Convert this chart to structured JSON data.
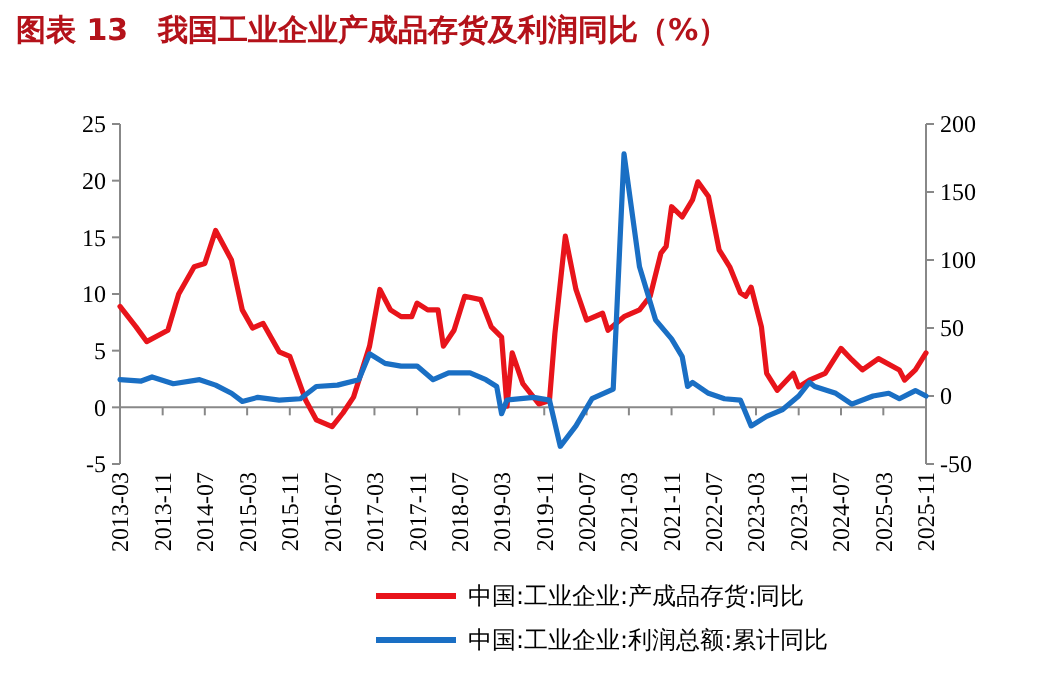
{
  "chart_data": {
    "type": "line",
    "title": "图表 13　我国工业企业产成品存货及利润同比（%）",
    "xlim": [
      "2013-03",
      "2025-11"
    ],
    "xticks": [
      "2013-03",
      "2013-11",
      "2014-07",
      "2015-03",
      "2015-11",
      "2016-07",
      "2017-03",
      "2017-11",
      "2018-07",
      "2019-03",
      "2019-11",
      "2020-07",
      "2021-03",
      "2021-11",
      "2022-07",
      "2023-03",
      "2023-11",
      "2024-07",
      "2025-03",
      "2025-11"
    ],
    "ylim": [
      -5,
      25
    ],
    "yticks": [
      -5,
      0,
      5,
      10,
      15,
      20,
      25
    ],
    "y2lim": [
      -50,
      200
    ],
    "y2ticks": [
      -50,
      0,
      50,
      100,
      150,
      200
    ],
    "legend": "bottom",
    "series": [
      {
        "name": "中国:工业企业:产成品存货:同比",
        "color": "#e8141b",
        "x": [
          "2013-03",
          "2013-06",
          "2013-08",
          "2013-12",
          "2014-02",
          "2014-05",
          "2014-07",
          "2014-09",
          "2014-12",
          "2015-02",
          "2015-04",
          "2015-06",
          "2015-09",
          "2015-11",
          "2016-02",
          "2016-04",
          "2016-07",
          "2016-09",
          "2016-11",
          "2017-02",
          "2017-04",
          "2017-06",
          "2017-08",
          "2017-10",
          "2017-11",
          "2018-01",
          "2018-03",
          "2018-04",
          "2018-06",
          "2018-08",
          "2018-11",
          "2019-01",
          "2019-03",
          "2019-04",
          "2019-05",
          "2019-07",
          "2019-10",
          "2019-12",
          "2020-01",
          "2020-03",
          "2020-05",
          "2020-07",
          "2020-10",
          "2020-11",
          "2021-02",
          "2021-05",
          "2021-07",
          "2021-09",
          "2021-10",
          "2021-11",
          "2022-01",
          "2022-03",
          "2022-04",
          "2022-06",
          "2022-08",
          "2022-10",
          "2022-12",
          "2023-01",
          "2023-02",
          "2023-04",
          "2023-05",
          "2023-07",
          "2023-10",
          "2023-11",
          "2024-01",
          "2024-04",
          "2024-07",
          "2024-09",
          "2024-11",
          "2025-02",
          "2025-06",
          "2025-07",
          "2025-09",
          "2025-11"
        ],
        "values": [
          8.9,
          7.1,
          5.8,
          6.8,
          10,
          12.4,
          12.7,
          15.6,
          13,
          8.6,
          7,
          7.4,
          4.9,
          4.5,
          0.6,
          -1.1,
          -1.7,
          -0.5,
          0.9,
          5.4,
          10.4,
          8.6,
          8,
          8,
          9.2,
          8.6,
          8.6,
          5.4,
          6.8,
          9.8,
          9.5,
          7.1,
          6.2,
          0.1,
          4.8,
          2.1,
          0.3,
          0.6,
          6.5,
          15.1,
          10.4,
          7.7,
          8.3,
          6.8,
          8,
          8.6,
          9.8,
          13.6,
          14.2,
          17.7,
          16.8,
          18.3,
          19.9,
          18.6,
          13.9,
          12.4,
          10.1,
          9.8,
          10.6,
          7.1,
          3,
          1.5,
          3,
          1.8,
          2.4,
          3,
          5.2,
          4.2,
          3.3,
          4.3,
          3.3,
          2.4,
          3.3,
          4.8
        ]
      },
      {
        "name": "中国:工业企业:利润总额:累计同比",
        "color": "#1a6fc4",
        "axis": "y2",
        "x": [
          "2013-03",
          "2013-07",
          "2013-09",
          "2014-01",
          "2014-06",
          "2014-09",
          "2014-12",
          "2015-02",
          "2015-05",
          "2015-09",
          "2016-01",
          "2016-04",
          "2016-08",
          "2016-12",
          "2017-02",
          "2017-05",
          "2017-08",
          "2017-11",
          "2018-02",
          "2018-05",
          "2018-09",
          "2018-12",
          "2019-02",
          "2019-03",
          "2019-04",
          "2019-09",
          "2019-12",
          "2020-02",
          "2020-05",
          "2020-08",
          "2020-12",
          "2021-02",
          "2021-05",
          "2021-08",
          "2021-11",
          "2022-01",
          "2022-02",
          "2022-03",
          "2022-06",
          "2022-09",
          "2022-12",
          "2023-02",
          "2023-05",
          "2023-08",
          "2023-11",
          "2024-01",
          "2024-02",
          "2024-06",
          "2024-09",
          "2025-01",
          "2025-04",
          "2025-06",
          "2025-09",
          "2025-11"
        ],
        "values": [
          12,
          11,
          14,
          9,
          12,
          8,
          2,
          -4,
          -1,
          -3,
          -2,
          7,
          8,
          12,
          31,
          24,
          22,
          22,
          12,
          17,
          17,
          12,
          7,
          -13,
          -3,
          -1,
          -3,
          -37,
          -22,
          -2,
          5,
          178,
          95,
          56,
          42,
          29,
          7,
          10,
          2,
          -2,
          -3,
          -22,
          -15,
          -10,
          0,
          10,
          7,
          2,
          -6,
          0,
          2,
          -2,
          4,
          0
        ]
      }
    ]
  }
}
